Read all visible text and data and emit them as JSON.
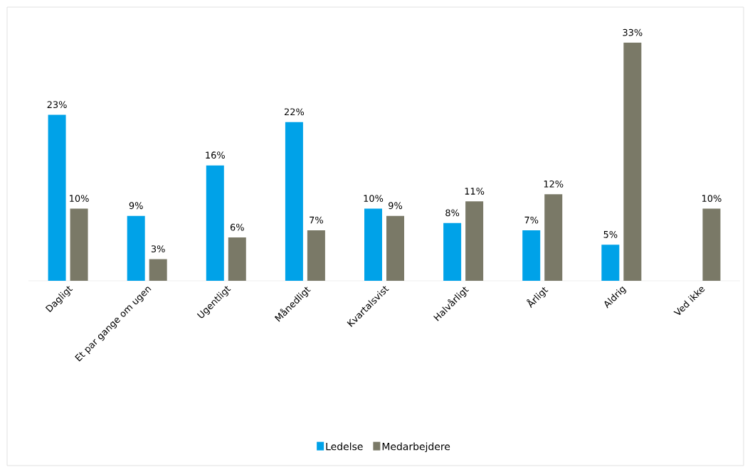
{
  "chart_data": {
    "type": "bar",
    "categories": [
      "Dagligt",
      "Et par gange om ugen",
      "Ugentligt",
      "Månedligt",
      "Kvartalsvist",
      "Halvårligt",
      "Årligt",
      "Aldrig",
      "Ved ikke"
    ],
    "series": [
      {
        "name": "Ledelse",
        "color": "#00a2e8",
        "values": [
          23,
          9,
          16,
          22,
          10,
          8,
          7,
          5,
          null
        ],
        "value_labels": [
          "23%",
          "9%",
          "16%",
          "22%",
          "10%",
          "8%",
          "7%",
          "5%",
          null
        ]
      },
      {
        "name": "Medarbejdere",
        "color": "#7a7967",
        "values": [
          10,
          3,
          6,
          7,
          9,
          11,
          12,
          33,
          10
        ],
        "value_labels": [
          "10%",
          "3%",
          "6%",
          "7%",
          "9%",
          "11%",
          "12%",
          "33%",
          "10%"
        ]
      }
    ],
    "legend": "bottom",
    "tick_labels": "x"
  }
}
